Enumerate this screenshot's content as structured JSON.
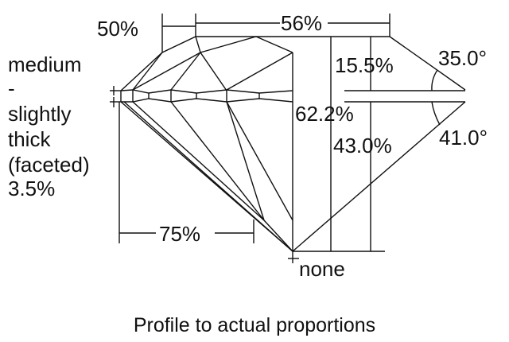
{
  "girdle_label": [
    "medium",
    "-",
    "slightly",
    "thick",
    "(faceted)",
    "3.5%"
  ],
  "dimensions": {
    "star_length": "50%",
    "table": "56%",
    "crown_height": "15.5%",
    "crown_angle": "35.0°",
    "total_depth": "62.2%",
    "pavilion_depth": "43.0%",
    "pavilion_angle": "41.0°",
    "lower_half_length": "75%",
    "culet": "none"
  },
  "caption": "Profile to actual proportions"
}
